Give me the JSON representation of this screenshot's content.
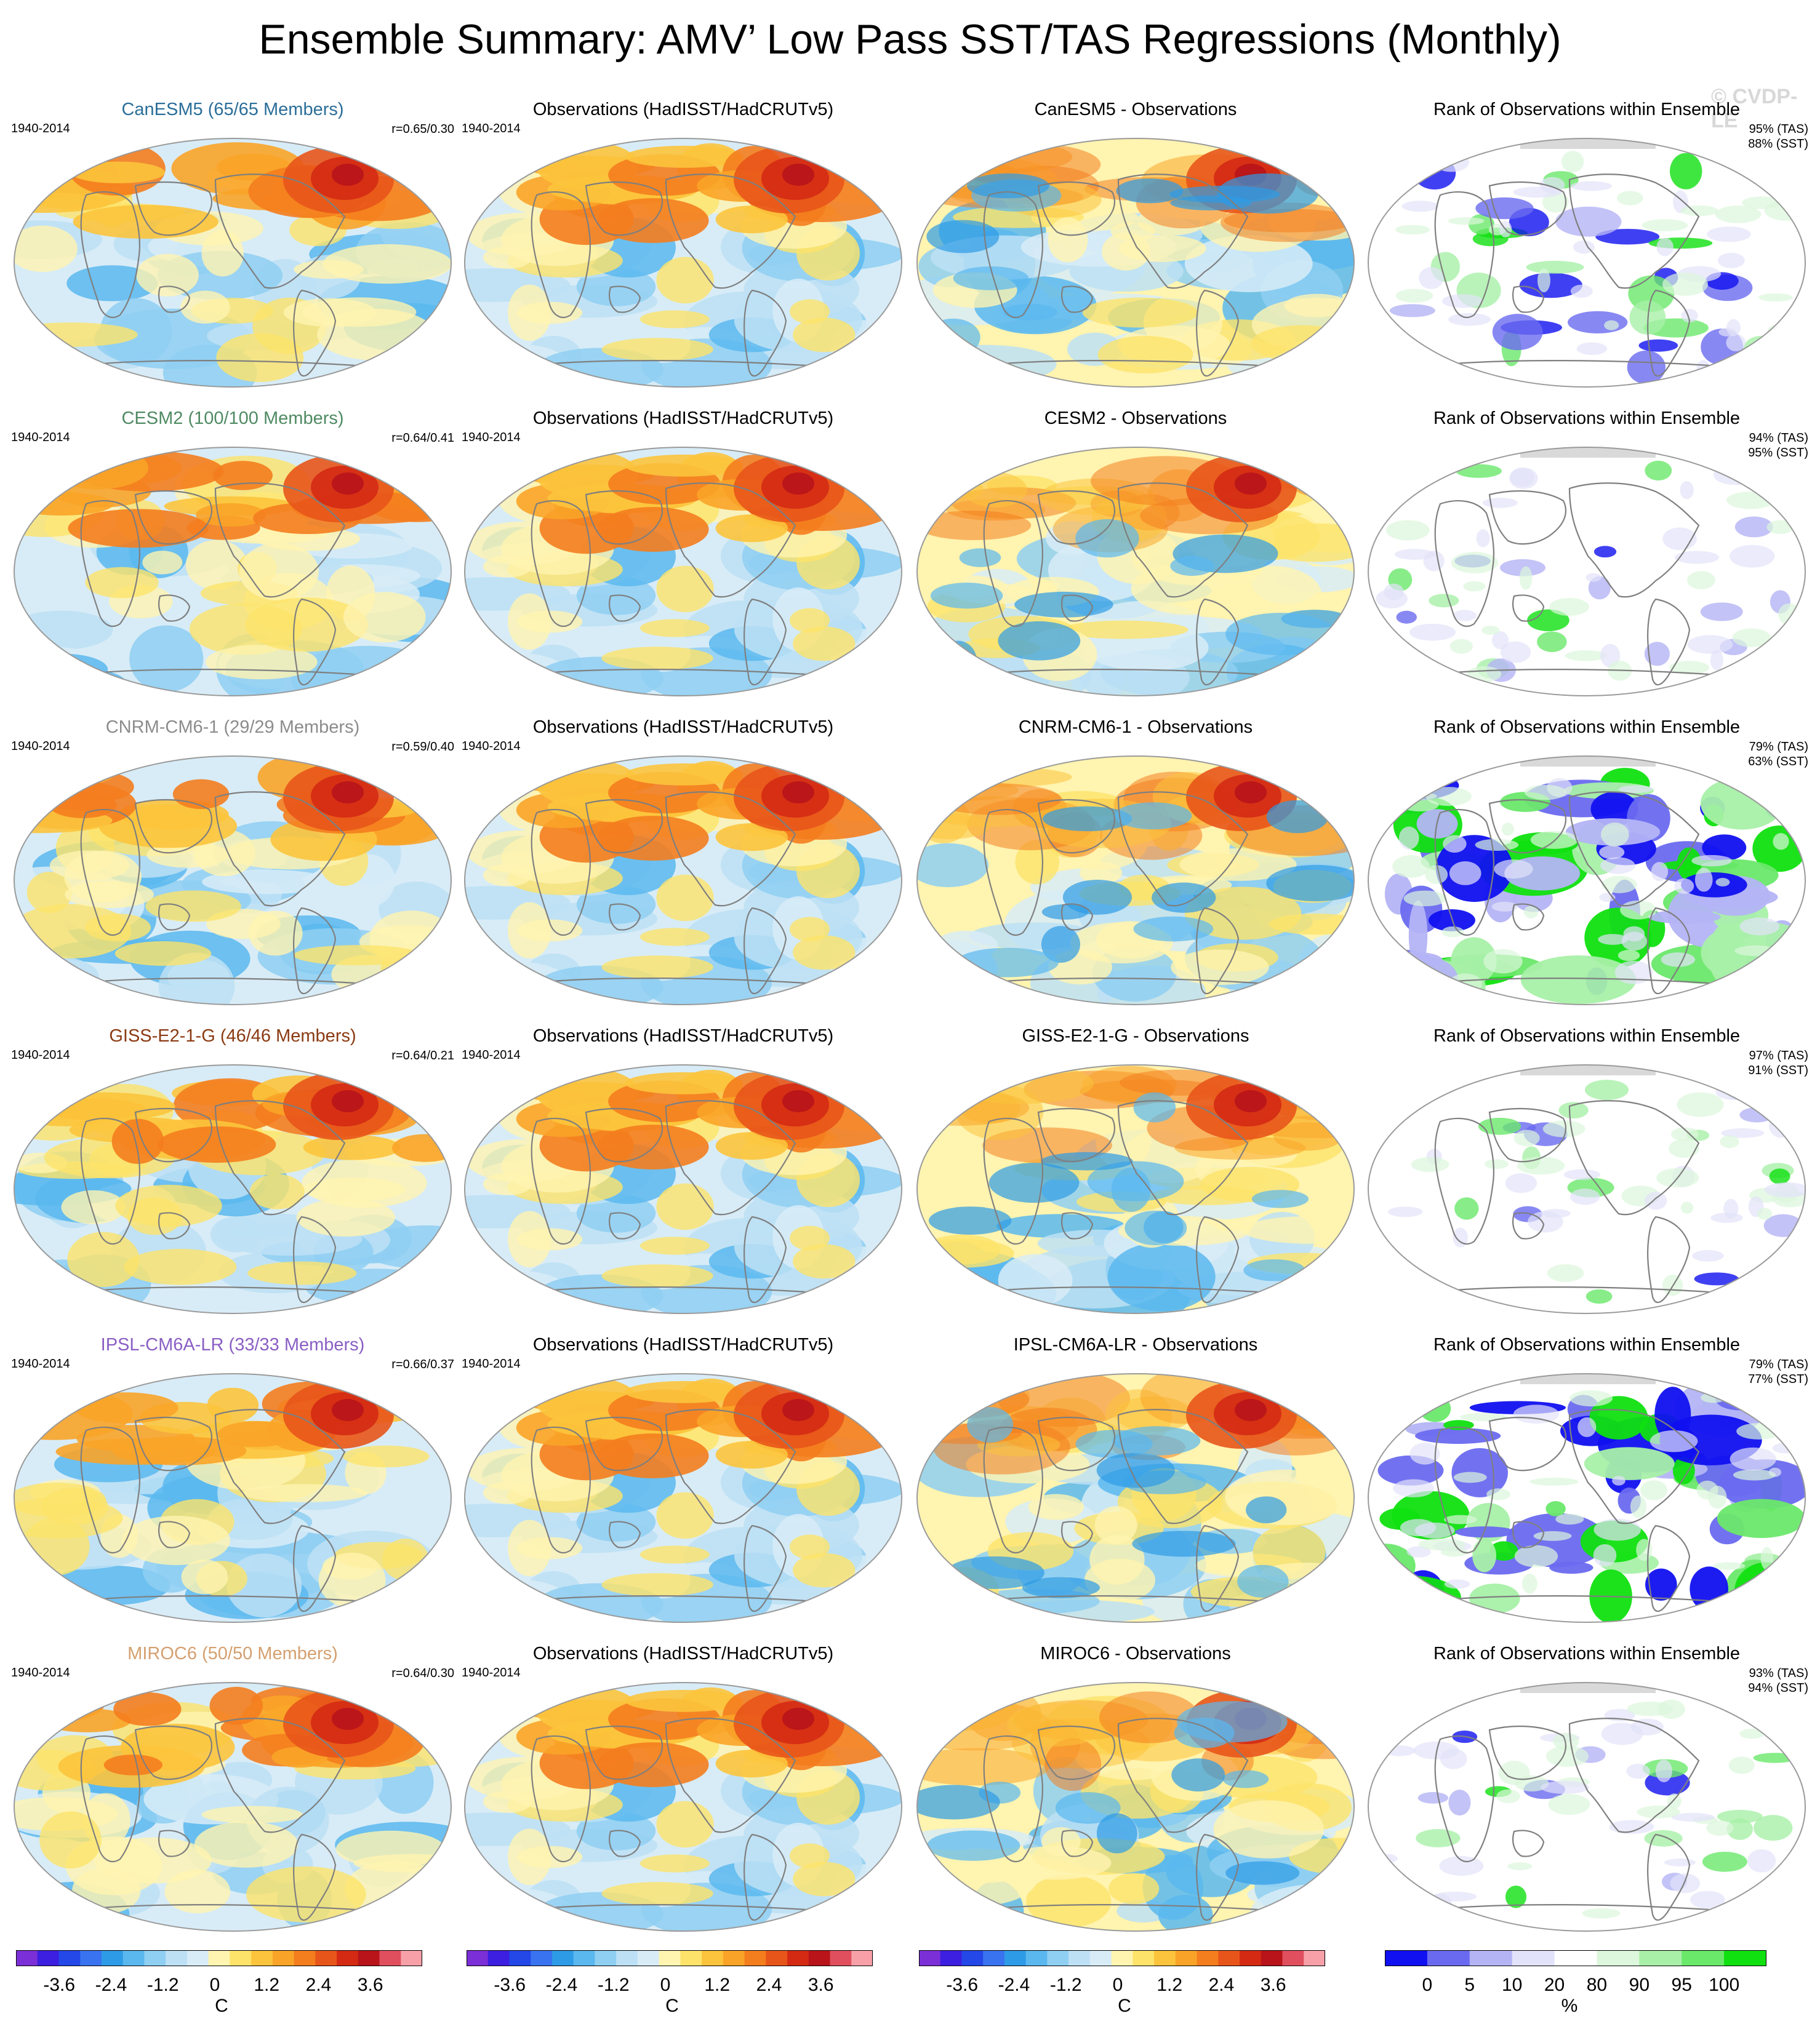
{
  "title": "Ensemble Summary: AMV’ Low Pass SST/TAS Regressions (Monthly)",
  "watermark": "© CVDP-LE",
  "period": "1940-2014",
  "obs_title": "Observations (HadISST/HadCRUTv5)",
  "rank_title": "Rank of Observations within Ensemble",
  "rows": [
    {
      "model_title": "CanESM5 (65/65 Members)",
      "model_color": "#2b6e99",
      "r": "r=0.65/0.30",
      "diff_title": "CanESM5 - Observations",
      "rank_tas": "95% (TAS)",
      "rank_sst": "88% (SST)"
    },
    {
      "model_title": "CESM2 (100/100 Members)",
      "model_color": "#4f8a63",
      "r": "r=0.64/0.41",
      "diff_title": "CESM2 - Observations",
      "rank_tas": "94% (TAS)",
      "rank_sst": "95% (SST)"
    },
    {
      "model_title": "CNRM-CM6-1 (29/29 Members)",
      "model_color": "#8c8c8c",
      "r": "r=0.59/0.40",
      "diff_title": "CNRM-CM6-1 - Observations",
      "rank_tas": "79% (TAS)",
      "rank_sst": "63% (SST)"
    },
    {
      "model_title": "GISS-E2-1-G (46/46 Members)",
      "model_color": "#8b3a12",
      "r": "r=0.64/0.21",
      "diff_title": "GISS-E2-1-G - Observations",
      "rank_tas": "97% (TAS)",
      "rank_sst": "91% (SST)"
    },
    {
      "model_title": "IPSL-CM6A-LR (33/33 Members)",
      "model_color": "#8a5fc4",
      "r": "r=0.66/0.37",
      "diff_title": "IPSL-CM6A-LR - Observations",
      "rank_tas": "79% (TAS)",
      "rank_sst": "77% (SST)"
    },
    {
      "model_title": "MIROC6 (50/50 Members)",
      "model_color": "#d4a070",
      "r": "r=0.64/0.30",
      "diff_title": "MIROC6 - Observations",
      "rank_tas": "93% (TAS)",
      "rank_sst": "94% (SST)"
    }
  ],
  "colorbar_temp": {
    "ticks": [
      "-3.6",
      "-2.4",
      "-1.2",
      "0",
      "1.2",
      "2.4",
      "3.6"
    ],
    "unit": "C",
    "colors": [
      "#7b2fd6",
      "#3c1fe0",
      "#2447e8",
      "#3a73f0",
      "#2e9be6",
      "#5ab8ef",
      "#8fcff2",
      "#bde0f5",
      "#d8ecf7",
      "#fff4b0",
      "#fde36a",
      "#fcc43c",
      "#f9a428",
      "#f47d1e",
      "#e8551a",
      "#d42a14",
      "#b8141a",
      "#e04f5e",
      "#f7a0a8"
    ]
  },
  "colorbar_rank": {
    "ticks": [
      "0",
      "5",
      "10",
      "20",
      "80",
      "90",
      "95",
      "100"
    ],
    "unit": "%",
    "colors": [
      "#1010f0",
      "#6a6af0",
      "#b4b4f5",
      "#e2e2fa",
      "#ffffff",
      "#dcf7dc",
      "#a8f0a8",
      "#6ae86a",
      "#10e010"
    ]
  },
  "palette": {
    "land_gray": "#d9d9d9",
    "coast": "#7f7f7f"
  }
}
